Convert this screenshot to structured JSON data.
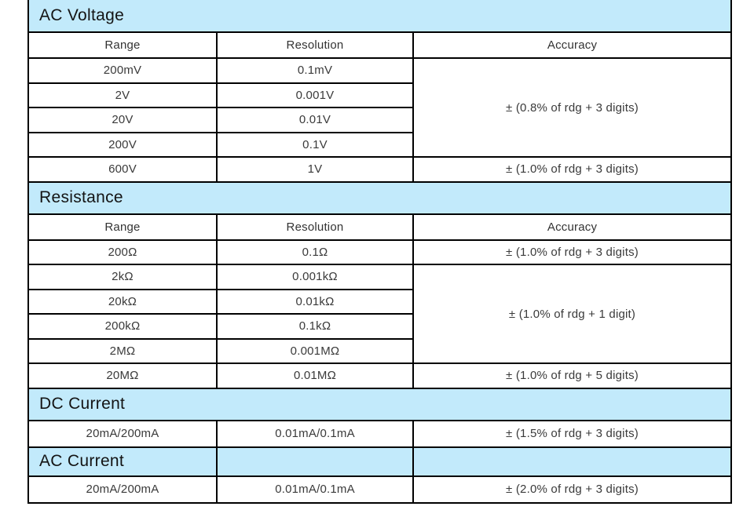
{
  "page": {
    "background": "#ffffff"
  },
  "colors": {
    "section_header_bg": "#c2eafb",
    "table_border": "#000000",
    "title_text": "#141414",
    "body_text": "#3a3a3a"
  },
  "table": {
    "column_headers": {
      "range": "Range",
      "resolution": "Resolution",
      "accuracy": "Accuracy"
    },
    "sections": {
      "ac_voltage": {
        "title": "AC Voltage",
        "rows": [
          {
            "range": "200mV",
            "resolution": "0.1mV"
          },
          {
            "range": "2V",
            "resolution": "0.001V"
          },
          {
            "range": "20V",
            "resolution": "0.01V"
          },
          {
            "range": "200V",
            "resolution": "0.1V"
          },
          {
            "range": "600V",
            "resolution": "1V"
          }
        ],
        "accuracy_rows_1_4": "± (0.8% of rdg + 3 digits)",
        "accuracy_row_5": "± (1.0% of rdg + 3 digits)"
      },
      "resistance": {
        "title": "Resistance",
        "rows": [
          {
            "range": "200Ω",
            "resolution": "0.1Ω"
          },
          {
            "range": "2kΩ",
            "resolution": "0.001kΩ"
          },
          {
            "range": "20kΩ",
            "resolution": "0.01kΩ"
          },
          {
            "range": "200kΩ",
            "resolution": "0.1kΩ"
          },
          {
            "range": "2MΩ",
            "resolution": "0.001MΩ"
          },
          {
            "range": "20MΩ",
            "resolution": "0.01MΩ"
          }
        ],
        "accuracy_row_1": "± (1.0% of rdg + 3 digits)",
        "accuracy_rows_2_5": "± (1.0% of rdg + 1 digit)",
        "accuracy_row_6": "± (1.0% of rdg + 5 digits)"
      },
      "dc_current": {
        "title": "DC Current",
        "row": {
          "range": "20mA/200mA",
          "resolution": "0.01mA/0.1mA",
          "accuracy": "± (1.5% of rdg + 3 digits)"
        }
      },
      "ac_current": {
        "title": "AC Current",
        "row": {
          "range": "20mA/200mA",
          "resolution": "0.01mA/0.1mA",
          "accuracy": "± (2.0% of rdg + 3 digits)"
        }
      }
    }
  }
}
